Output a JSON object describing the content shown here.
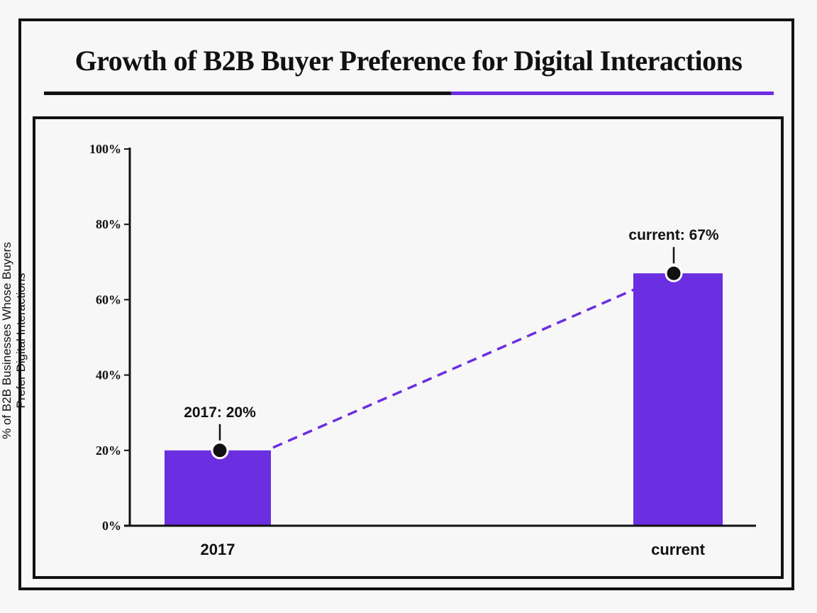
{
  "chart_data": {
    "type": "bar",
    "title": "Growth of B2B Buyer Preference for Digital Interactions",
    "categories": [
      "2017",
      "current"
    ],
    "values": [
      20,
      67
    ],
    "ylabel_lines": [
      "% of B2B Businesses Whose Buyers",
      "Prefer Digital Interactions"
    ],
    "xlabel": "",
    "ylim": [
      0,
      100
    ],
    "yticks": [
      "0%",
      "20%",
      "40%",
      "60%",
      "80%",
      "100%"
    ],
    "annotations": [
      "2017: 20%",
      "current: 67%"
    ],
    "grid": false,
    "colors": {
      "bar": "#6b2ee0",
      "accent": "#6b2ee0",
      "axis": "#111111"
    }
  }
}
